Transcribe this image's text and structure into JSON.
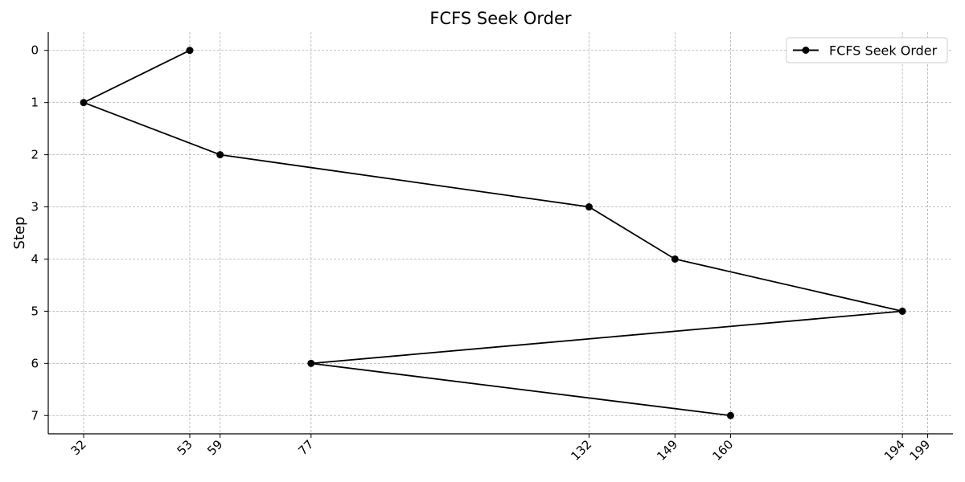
{
  "chart_data": {
    "type": "line",
    "title": "FCFS Seek Order",
    "xlabel": "",
    "ylabel": "Step",
    "xlim": [
      25,
      204
    ],
    "ylim": [
      7.35,
      -0.35
    ],
    "y_inverted": true,
    "x_ticks": [
      32,
      53,
      59,
      77,
      132,
      149,
      160,
      194,
      199
    ],
    "y_ticks": [
      0,
      1,
      2,
      3,
      4,
      5,
      6,
      7
    ],
    "grid": true,
    "legend_position": "top-right",
    "series": [
      {
        "name": "FCFS Seek Order",
        "color": "#000000",
        "marker": "circle",
        "points": [
          {
            "x": 53,
            "y": 0
          },
          {
            "x": 32,
            "y": 1
          },
          {
            "x": 59,
            "y": 2
          },
          {
            "x": 132,
            "y": 3
          },
          {
            "x": 149,
            "y": 4
          },
          {
            "x": 194,
            "y": 5
          },
          {
            "x": 77,
            "y": 6
          },
          {
            "x": 160,
            "y": 7
          }
        ]
      }
    ]
  }
}
